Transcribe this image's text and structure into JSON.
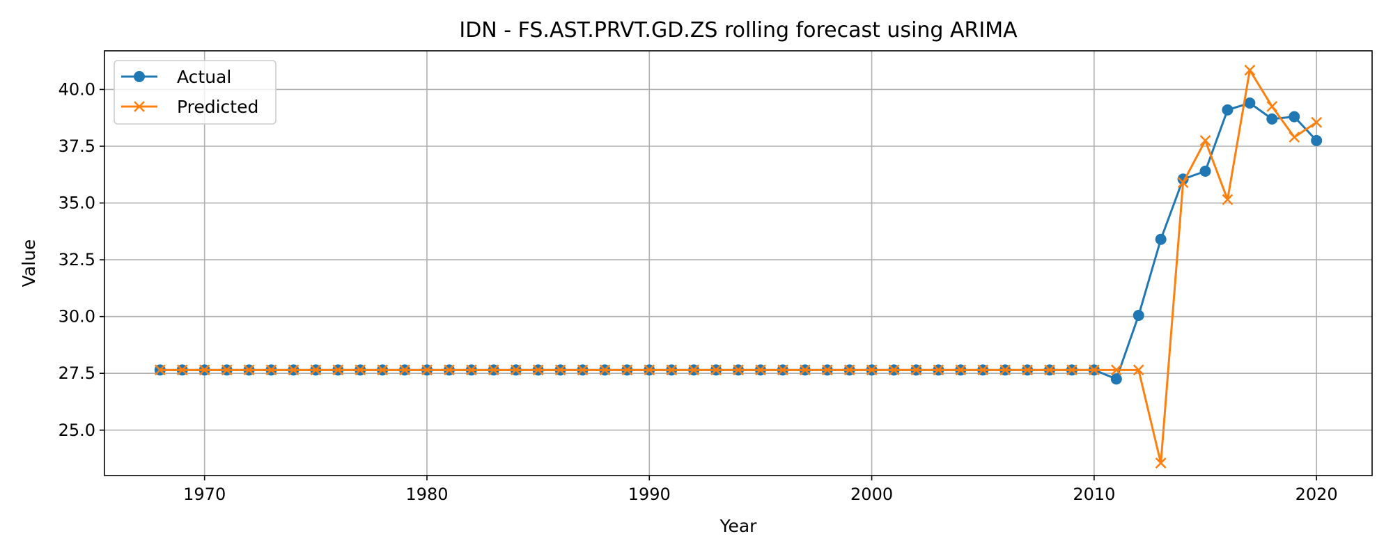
{
  "chart_data": {
    "type": "line",
    "title": "IDN - FS.AST.PRVT.GD.ZS rolling forecast using ARIMA",
    "xlabel": "Year",
    "ylabel": "Value",
    "xlim": [
      1965.5,
      2022.5
    ],
    "ylim": [
      23.0,
      41.7
    ],
    "xticks": [
      1970,
      1980,
      1990,
      2000,
      2010,
      2020
    ],
    "xtick_labels": [
      "1970",
      "1980",
      "1990",
      "2000",
      "2010",
      "2020"
    ],
    "yticks": [
      25.0,
      27.5,
      30.0,
      32.5,
      35.0,
      37.5,
      40.0
    ],
    "ytick_labels": [
      "25.0",
      "27.5",
      "30.0",
      "32.5",
      "35.0",
      "37.5",
      "40.0"
    ],
    "grid": true,
    "legend": "top-left",
    "x": [
      1968,
      1969,
      1970,
      1971,
      1972,
      1973,
      1974,
      1975,
      1976,
      1977,
      1978,
      1979,
      1980,
      1981,
      1982,
      1983,
      1984,
      1985,
      1986,
      1987,
      1988,
      1989,
      1990,
      1991,
      1992,
      1993,
      1994,
      1995,
      1996,
      1997,
      1998,
      1999,
      2000,
      2001,
      2002,
      2003,
      2004,
      2005,
      2006,
      2007,
      2008,
      2009,
      2010,
      2011,
      2012,
      2013,
      2014,
      2015,
      2016,
      2017,
      2018,
      2019,
      2020
    ],
    "series": [
      {
        "name": "Actual",
        "color": "#1f77b4",
        "marker": "circle",
        "values": [
          27.65,
          27.65,
          27.65,
          27.65,
          27.65,
          27.65,
          27.65,
          27.65,
          27.65,
          27.65,
          27.65,
          27.65,
          27.65,
          27.65,
          27.65,
          27.65,
          27.65,
          27.65,
          27.65,
          27.65,
          27.65,
          27.65,
          27.65,
          27.65,
          27.65,
          27.65,
          27.65,
          27.65,
          27.65,
          27.65,
          27.65,
          27.65,
          27.65,
          27.65,
          27.65,
          27.65,
          27.65,
          27.65,
          27.65,
          27.65,
          27.65,
          27.65,
          27.65,
          27.25,
          30.05,
          33.4,
          36.05,
          36.4,
          39.1,
          39.4,
          38.7,
          38.8,
          37.75
        ]
      },
      {
        "name": "Predicted",
        "color": "#ff7f0e",
        "marker": "x",
        "values": [
          27.65,
          27.65,
          27.65,
          27.65,
          27.65,
          27.65,
          27.65,
          27.65,
          27.65,
          27.65,
          27.65,
          27.65,
          27.65,
          27.65,
          27.65,
          27.65,
          27.65,
          27.65,
          27.65,
          27.65,
          27.65,
          27.65,
          27.65,
          27.65,
          27.65,
          27.65,
          27.65,
          27.65,
          27.65,
          27.65,
          27.65,
          27.65,
          27.65,
          27.65,
          27.65,
          27.65,
          27.65,
          27.65,
          27.65,
          27.65,
          27.65,
          27.65,
          27.65,
          27.65,
          27.65,
          23.55,
          35.9,
          37.75,
          35.15,
          40.85,
          39.25,
          37.9,
          38.55
        ]
      }
    ]
  }
}
